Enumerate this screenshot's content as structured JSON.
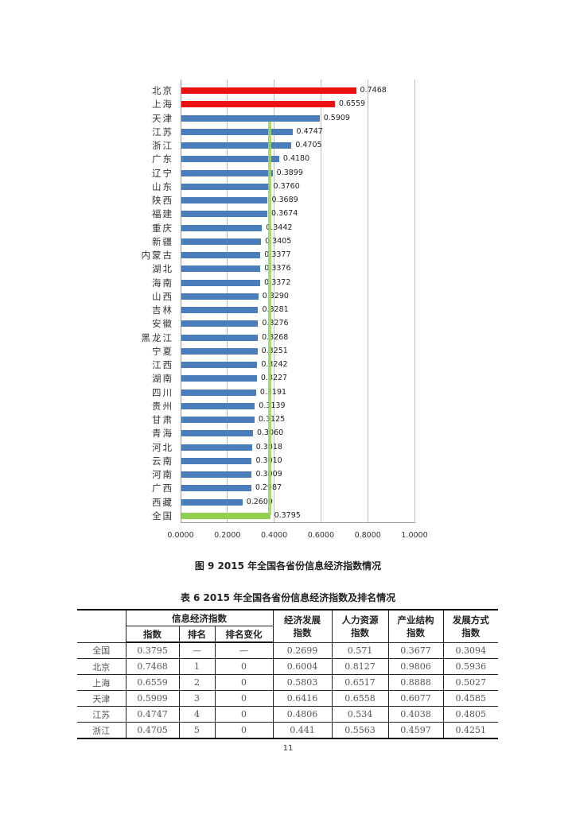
{
  "chart_data": {
    "type": "bar",
    "orientation": "horizontal",
    "title": "图 9   2015 年全国各省份信息经济指数情况",
    "xlabel": "",
    "ylabel": "",
    "xlim": [
      0,
      1
    ],
    "x_ticks": [
      "0.0000",
      "0.2000",
      "0.4000",
      "0.6000",
      "0.8000",
      "1.0000"
    ],
    "grid": true,
    "legend": null,
    "reference_line": {
      "label": "全国",
      "value": 0.3795,
      "color": "#9bd45a"
    },
    "categories": [
      "北京",
      "上海",
      "天津",
      "江苏",
      "浙江",
      "广东",
      "辽宁",
      "山东",
      "陕西",
      "福建",
      "重庆",
      "新疆",
      "内蒙古",
      "湖北",
      "海南",
      "山西",
      "吉林",
      "安徽",
      "黑龙江",
      "宁夏",
      "江西",
      "湖南",
      "四川",
      "贵州",
      "甘肃",
      "青海",
      "河北",
      "云南",
      "河南",
      "广西",
      "西藏",
      "全国"
    ],
    "values": [
      0.7468,
      0.6559,
      0.5909,
      0.4747,
      0.4705,
      0.418,
      0.3899,
      0.376,
      0.3689,
      0.3674,
      0.3442,
      0.3405,
      0.3377,
      0.3376,
      0.3372,
      0.329,
      0.3281,
      0.3276,
      0.3268,
      0.3251,
      0.3242,
      0.3227,
      0.3191,
      0.3139,
      0.3125,
      0.306,
      0.3018,
      0.301,
      0.3009,
      0.2987,
      0.2609,
      0.3795
    ],
    "value_labels": [
      "0.7468",
      "0.6559",
      "0.5909",
      "0.4747",
      "0.4705",
      "0.4180",
      "0.3899",
      "0.3760",
      "0.3689",
      "0.3674",
      "0.3442",
      "0.3405",
      "0.3377",
      "0.3376",
      "0.3372",
      "0.3290",
      "0.3281",
      "0.3276",
      "0.3268",
      "0.3251",
      "0.3242",
      "0.3227",
      "0.3191",
      "0.3139",
      "0.3125",
      "0.3060",
      "0.3018",
      "0.3010",
      "0.3009",
      "0.2987",
      "0.2609",
      "0.3795"
    ],
    "colors": {
      "top": "#ee1111",
      "default": "#4a7ebb",
      "national": "#92d050"
    },
    "bar_colors": [
      "#ee1111",
      "#ee1111",
      "#4a7ebb",
      "#4a7ebb",
      "#4a7ebb",
      "#4a7ebb",
      "#4a7ebb",
      "#4a7ebb",
      "#4a7ebb",
      "#4a7ebb",
      "#4a7ebb",
      "#4a7ebb",
      "#4a7ebb",
      "#4a7ebb",
      "#4a7ebb",
      "#4a7ebb",
      "#4a7ebb",
      "#4a7ebb",
      "#4a7ebb",
      "#4a7ebb",
      "#4a7ebb",
      "#4a7ebb",
      "#4a7ebb",
      "#4a7ebb",
      "#4a7ebb",
      "#4a7ebb",
      "#4a7ebb",
      "#4a7ebb",
      "#4a7ebb",
      "#4a7ebb",
      "#4a7ebb",
      "#92d050"
    ]
  },
  "figure_caption": "图 9   2015 年全国各省份信息经济指数情况",
  "table": {
    "caption": "表 6   2015 年全国各省份信息经济指数及排名情况",
    "group_header": "信息经济指数",
    "sub_headers": [
      "指数",
      "排名",
      "排名变化"
    ],
    "other_headers": [
      {
        "line1": "经济发展",
        "line2": "指数"
      },
      {
        "line1": "人力资源",
        "line2": "指数"
      },
      {
        "line1": "产业结构",
        "line2": "指数"
      },
      {
        "line1": "发展方式",
        "line2": "指数"
      }
    ],
    "rows": [
      [
        "全国",
        "0.3795",
        "—",
        "—",
        "0.2699",
        "0.571",
        "0.3677",
        "0.3094"
      ],
      [
        "北京",
        "0.7468",
        "1",
        "0",
        "0.6004",
        "0.8127",
        "0.9806",
        "0.5936"
      ],
      [
        "上海",
        "0.6559",
        "2",
        "0",
        "0.5803",
        "0.6517",
        "0.8888",
        "0.5027"
      ],
      [
        "天津",
        "0.5909",
        "3",
        "0",
        "0.6416",
        "0.6558",
        "0.6077",
        "0.4585"
      ],
      [
        "江苏",
        "0.4747",
        "4",
        "0",
        "0.4806",
        "0.534",
        "0.4038",
        "0.4805"
      ],
      [
        "浙江",
        "0.4705",
        "5",
        "0",
        "0.441",
        "0.5563",
        "0.4597",
        "0.4251"
      ]
    ]
  },
  "page_number": "11"
}
